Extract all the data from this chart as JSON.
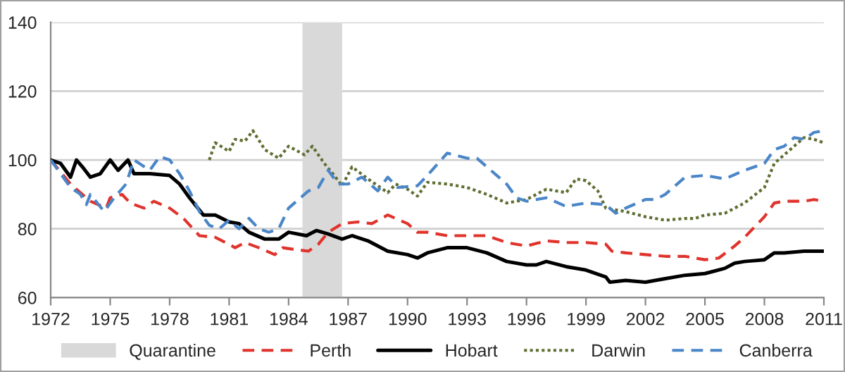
{
  "chart_data": {
    "type": "line",
    "xlim": [
      1972,
      2011
    ],
    "xticks": [
      1972,
      1975,
      1978,
      1981,
      1984,
      1987,
      1990,
      1993,
      1996,
      1999,
      2002,
      2005,
      2008,
      2011
    ],
    "ylim": [
      60,
      140
    ],
    "yticks": [
      60,
      80,
      100,
      120,
      140
    ],
    "grid": "y",
    "legend": "bottom",
    "bands": [
      {
        "axis": "x",
        "from": 1984.7,
        "to": 1986.7,
        "label": "Quarantine",
        "color": "#d9d9d9"
      }
    ],
    "series": [
      {
        "name": "Perth",
        "color": "#e0332c",
        "line_style": "dashed",
        "x": [
          1972,
          1973,
          1974,
          1974.8,
          1975,
          1975.6,
          1976,
          1976.7,
          1977.2,
          1978,
          1978.7,
          1979.5,
          1980.3,
          1981,
          1981.3,
          1981.8,
          1982.5,
          1983.3,
          1983.7,
          1984.3,
          1985,
          1985.5,
          1986,
          1986.7,
          1987.5,
          1988.2,
          1989,
          1990,
          1990.5,
          1991,
          1992,
          1993,
          1994,
          1995,
          1996,
          1997,
          1998,
          1999,
          2000,
          2000.3,
          2001,
          2002,
          2003,
          2004,
          2005,
          2005.7,
          2006.5,
          2007,
          2008,
          2008.5,
          2009,
          2010,
          2010.5,
          2011
        ],
        "values": [
          100,
          93,
          88,
          86,
          89,
          90,
          87.5,
          86,
          88,
          86,
          83,
          78,
          77.5,
          75.5,
          74.5,
          76,
          74.5,
          72.5,
          74.5,
          74,
          73.5,
          75.5,
          79,
          81.5,
          82,
          81.5,
          84,
          81.5,
          79,
          79,
          78,
          78,
          78,
          76,
          75,
          76.5,
          76,
          76,
          75.5,
          73.5,
          73,
          72.5,
          72,
          72,
          71,
          71.5,
          75,
          77.5,
          83.5,
          87.5,
          88,
          88,
          88.5,
          88
        ]
      },
      {
        "name": "Hobart",
        "color": "#000000",
        "line_style": "solid",
        "x": [
          1972,
          1972.5,
          1973,
          1973.3,
          1973.6,
          1974,
          1974.5,
          1975,
          1975.4,
          1975.9,
          1976.2,
          1977,
          1978,
          1978.5,
          1979,
          1979.7,
          1980.3,
          1981,
          1981.5,
          1982,
          1982.8,
          1983.5,
          1984,
          1984.9,
          1985.4,
          1986,
          1986.7,
          1987.2,
          1988,
          1989,
          1990,
          1990.5,
          1991,
          1992,
          1993,
          1994,
          1995,
          1996,
          1996.5,
          1997,
          1998,
          1999,
          2000,
          2000.2,
          2001,
          2002,
          2003,
          2004,
          2005,
          2006,
          2006.5,
          2007,
          2008,
          2008.5,
          2009,
          2010,
          2010.5,
          2011
        ],
        "values": [
          100,
          99,
          95,
          100,
          98,
          95,
          96,
          100,
          97,
          100,
          96,
          96,
          95.5,
          93,
          89,
          84,
          84,
          82,
          81.5,
          79,
          77,
          77,
          79,
          78,
          79.5,
          78.5,
          77,
          78,
          76.5,
          73.5,
          72.5,
          71.5,
          73,
          74.5,
          74.5,
          73,
          70.5,
          69.5,
          69.5,
          70.5,
          69,
          68,
          66,
          64.5,
          65,
          64.5,
          65.5,
          66.5,
          67,
          68.5,
          70,
          70.5,
          71,
          73,
          73,
          73.5,
          73.5,
          73.5
        ]
      },
      {
        "name": "Darwin",
        "color": "#5f6e32",
        "line_style": "dotted",
        "x": [
          1980,
          1980.3,
          1981,
          1981.3,
          1981.8,
          1982.2,
          1982.8,
          1983.5,
          1984,
          1984.8,
          1985.2,
          1985.8,
          1986.3,
          1986.7,
          1987.2,
          1988,
          1989,
          1989.4,
          1990,
          1990.5,
          1991,
          1992,
          1993,
          1994,
          1995,
          1996,
          1997,
          1998,
          1998.5,
          1999,
          1999.6,
          2000,
          2001,
          2002,
          2003,
          2004,
          2004.5,
          2005,
          2006,
          2007,
          2008,
          2008.5,
          2009,
          2009.5,
          2010,
          2010.5,
          2011
        ],
        "values": [
          100,
          105,
          102.5,
          106,
          105.5,
          108.5,
          103,
          100.5,
          104,
          101.5,
          104,
          99,
          95.5,
          92.5,
          98,
          94.5,
          90.5,
          93,
          91.5,
          89.5,
          93.5,
          93,
          92,
          90,
          87.5,
          88.5,
          91.5,
          90.5,
          94.5,
          94,
          91,
          86,
          85,
          83.5,
          82.5,
          83,
          83,
          84,
          84.5,
          87.5,
          92,
          99,
          101.5,
          104,
          106.5,
          106,
          105
        ]
      },
      {
        "name": "Canberra",
        "color": "#4a86c8",
        "line_style": "dashed",
        "x": [
          1972,
          1973,
          1973.5,
          1973.8,
          1974,
          1974.7,
          1975.2,
          1975.8,
          1976.2,
          1977,
          1977.5,
          1978,
          1978.5,
          1979,
          1979.5,
          1980,
          1980.5,
          1981,
          1981.5,
          1982,
          1982.5,
          1983,
          1983.5,
          1984,
          1985,
          1985.5,
          1986,
          1986.5,
          1987,
          1987.7,
          1988.5,
          1989,
          1989.5,
          1990.5,
          1991,
          1992,
          1993,
          1993.5,
          1994,
          1995,
          1995.5,
          1996,
          1997,
          1998,
          1999,
          2000,
          2000.5,
          2001,
          2002,
          2002.5,
          2003,
          2004,
          2005,
          2006,
          2007,
          2008,
          2008.5,
          2009,
          2009.5,
          2010,
          2010.5,
          2011
        ],
        "values": [
          100,
          92,
          90,
          87,
          90,
          85,
          89,
          93,
          100,
          97,
          101,
          100,
          96,
          91,
          85,
          81,
          80,
          82.5,
          80,
          83,
          80,
          79,
          80,
          86,
          91,
          92,
          97,
          93,
          93,
          95,
          91,
          95,
          92,
          92.5,
          95.5,
          102,
          100.5,
          100.5,
          98,
          93,
          89,
          88,
          89,
          86.5,
          87.5,
          87,
          84.5,
          86,
          88.5,
          88.5,
          90,
          95,
          95.5,
          94.5,
          97,
          99,
          103,
          104,
          106.5,
          106,
          108,
          108.5
        ]
      }
    ]
  }
}
